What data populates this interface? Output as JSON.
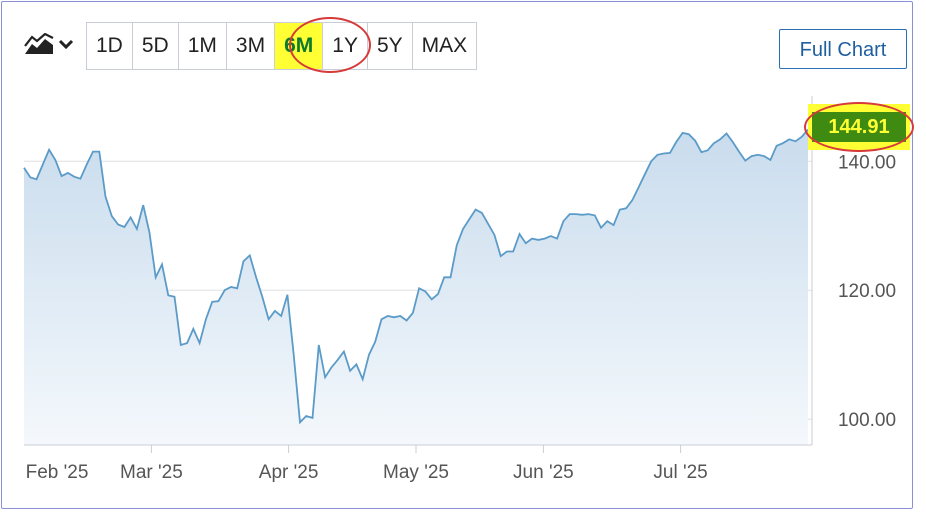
{
  "toolbar": {
    "chart_type_icon": "area-chart-icon",
    "dropdown_icon": "chevron-down-icon",
    "ranges": [
      "1D",
      "5D",
      "1M",
      "3M",
      "6M",
      "1Y",
      "5Y",
      "MAX"
    ],
    "active_range": "6M",
    "full_chart_label": "Full Chart"
  },
  "colors": {
    "line": "#5b9bc8",
    "fill_top": "#c9dced",
    "fill_bottom": "#f4f8fc",
    "highlight": "#ffff33",
    "price_tag": "#3f8b12",
    "annotation": "#d63a3a"
  },
  "price_label": "144.91",
  "chart_data": {
    "type": "area",
    "title": "",
    "xlabel": "",
    "ylabel": "",
    "x_tick_labels": [
      "Feb '25",
      "Mar '25",
      "Apr '25",
      "May '25",
      "Jun '25",
      "Jul '25"
    ],
    "y_tick_labels": [
      "100.00",
      "120.00",
      "140.00"
    ],
    "y_ticks": [
      100,
      120,
      140
    ],
    "ylim": [
      96,
      149.5
    ],
    "grid": true,
    "series": [
      {
        "values": [
          139,
          137.5,
          137.2,
          139.5,
          141.8,
          140.2,
          137.7,
          138.2,
          137.6,
          137.3,
          139.5,
          141.5,
          141.5,
          134.5,
          131.5,
          130.2,
          129.8,
          131.3,
          129.5,
          133.2,
          129,
          122,
          124,
          119.2,
          119,
          111.5,
          111.8,
          114,
          111.8,
          115.5,
          118.2,
          118.3,
          120,
          120.5,
          120.3,
          124.5,
          125.4,
          122,
          119,
          115.5,
          116.8,
          116,
          119.3,
          110,
          99.5,
          100.5,
          100.2,
          111.5,
          106.5,
          108,
          109.2,
          110.5,
          107.5,
          108.5,
          106.2,
          110,
          112,
          115.5,
          116,
          115.8,
          116,
          115.3,
          116.5,
          120.3,
          119.8,
          118.6,
          119.4,
          122,
          122,
          127,
          129.5,
          131,
          132.5,
          132,
          130.3,
          128.6,
          125.3,
          126,
          126,
          128.7,
          127.3,
          128,
          127.8,
          128,
          128.4,
          128,
          130.7,
          131.8,
          131.8,
          131.7,
          131.8,
          131.6,
          129.7,
          130.7,
          130.1,
          132.5,
          132.7,
          134,
          136,
          138,
          140,
          141,
          141.2,
          141.3,
          143,
          144.4,
          144.2,
          143.2,
          141.4,
          141.7,
          142.8,
          143.4,
          144.3,
          143,
          141.5,
          140.1,
          140.8,
          141,
          140.8,
          140.2,
          142.4,
          142.8,
          143.4,
          143.1,
          143.8,
          144.91
        ]
      }
    ]
  }
}
